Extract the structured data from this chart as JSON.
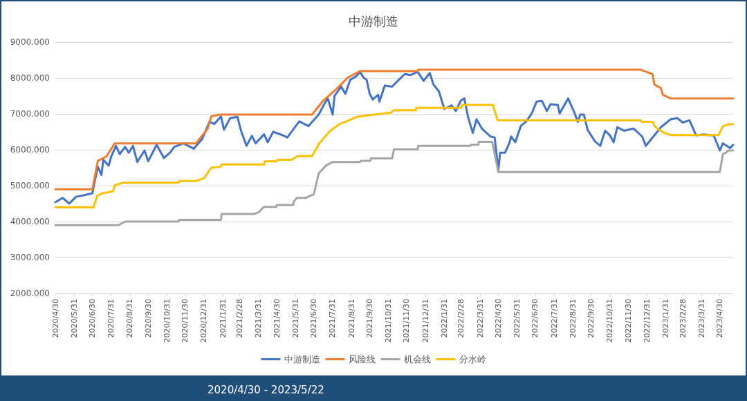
{
  "chart_data": {
    "type": "line",
    "title": "中游制造",
    "annotations": [
      "2020/4/30 - 2023/5/22"
    ],
    "xlim": [
      "2020-04-30",
      "2023-05-22"
    ],
    "xticks": [
      {
        "value": "2020-04-30",
        "label": "2020/4/30"
      },
      {
        "value": "2020-05-31",
        "label": "2020/5/31"
      },
      {
        "value": "2020-06-30",
        "label": "2020/6/30"
      },
      {
        "value": "2020-07-31",
        "label": "2020/7/31"
      },
      {
        "value": "2020-08-31",
        "label": "2020/8/31"
      },
      {
        "value": "2020-09-30",
        "label": "2020/9/30"
      },
      {
        "value": "2020-10-31",
        "label": "2020/10/31"
      },
      {
        "value": "2020-11-30",
        "label": "2020/11/30"
      },
      {
        "value": "2020-12-31",
        "label": "2020/12/31"
      },
      {
        "value": "2021-01-31",
        "label": "2021/1/31"
      },
      {
        "value": "2021-02-28",
        "label": "2021/2/28"
      },
      {
        "value": "2021-03-31",
        "label": "2021/3/31"
      },
      {
        "value": "2021-04-30",
        "label": "2021/4/30"
      },
      {
        "value": "2021-05-31",
        "label": "2021/5/31"
      },
      {
        "value": "2021-06-30",
        "label": "2021/6/30"
      },
      {
        "value": "2021-07-31",
        "label": "2021/7/31"
      },
      {
        "value": "2021-08-31",
        "label": "2021/8/31"
      },
      {
        "value": "2021-09-30",
        "label": "2021/9/30"
      },
      {
        "value": "2021-10-31",
        "label": "2021/10/31"
      },
      {
        "value": "2021-11-30",
        "label": "2021/11/30"
      },
      {
        "value": "2021-12-31",
        "label": "2021/12/31"
      },
      {
        "value": "2022-01-31",
        "label": "2022/1/31"
      },
      {
        "value": "2022-02-28",
        "label": "2022/2/28"
      },
      {
        "value": "2022-03-31",
        "label": "2022/3/31"
      },
      {
        "value": "2022-04-30",
        "label": "2022/4/30"
      },
      {
        "value": "2022-05-31",
        "label": "2022/5/31"
      },
      {
        "value": "2022-06-30",
        "label": "2022/6/30"
      },
      {
        "value": "2022-07-31",
        "label": "2022/7/31"
      },
      {
        "value": "2022-08-31",
        "label": "2022/8/31"
      },
      {
        "value": "2022-09-30",
        "label": "2022/9/30"
      },
      {
        "value": "2022-10-31",
        "label": "2022/10/31"
      },
      {
        "value": "2022-11-30",
        "label": "2022/11/30"
      },
      {
        "value": "2022-12-31",
        "label": "2022/12/31"
      },
      {
        "value": "2023-01-31",
        "label": "2023/1/31"
      },
      {
        "value": "2023-02-28",
        "label": "2023/2/28"
      },
      {
        "value": "2023-03-31",
        "label": "2023/3/31"
      },
      {
        "value": "2023-04-30",
        "label": "2023/4/30"
      }
    ],
    "ylim": [
      2000,
      9000
    ],
    "yticks": [
      {
        "value": 2000,
        "label": "2000.000"
      },
      {
        "value": 3000,
        "label": "3000.000"
      },
      {
        "value": 4000,
        "label": "4000.000"
      },
      {
        "value": 5000,
        "label": "5000.000"
      },
      {
        "value": 6000,
        "label": "6000.000"
      },
      {
        "value": 7000,
        "label": "7000.000"
      },
      {
        "value": 8000,
        "label": "8000.000"
      },
      {
        "value": 9000,
        "label": "9000.000"
      }
    ],
    "grid": "y",
    "legend": "bottom",
    "marker": "none",
    "line_style": "solid",
    "series": [
      {
        "name": "中游制造",
        "color": "#4472c4",
        "x": [
          "2020-04-30",
          "2020-05-12",
          "2020-05-23",
          "2020-06-03",
          "2020-06-18",
          "2020-06-30",
          "2020-07-09",
          "2020-07-15",
          "2020-07-18",
          "2020-07-27",
          "2020-07-31",
          "2020-08-08",
          "2020-08-14",
          "2020-08-23",
          "2020-08-29",
          "2020-09-05",
          "2020-09-12",
          "2020-09-24",
          "2020-09-30",
          "2020-10-14",
          "2020-10-26",
          "2020-11-05",
          "2020-11-12",
          "2020-11-27",
          "2020-12-14",
          "2020-12-28",
          "2021-01-09",
          "2021-01-17",
          "2021-01-28",
          "2021-02-02",
          "2021-02-12",
          "2021-02-24",
          "2021-03-02",
          "2021-03-11",
          "2021-03-20",
          "2021-03-26",
          "2021-04-09",
          "2021-04-15",
          "2021-04-24",
          "2021-05-12",
          "2021-05-17",
          "2021-06-06",
          "2021-06-21",
          "2021-07-08",
          "2021-07-17",
          "2021-07-23",
          "2021-07-31",
          "2021-08-03",
          "2021-08-14",
          "2021-08-21",
          "2021-08-29",
          "2021-09-08",
          "2021-09-14",
          "2021-09-20",
          "2021-09-25",
          "2021-09-30",
          "2021-10-05",
          "2021-10-14",
          "2021-10-16",
          "2021-10-25",
          "2021-11-06",
          "2021-11-17",
          "2021-11-27",
          "2021-12-06",
          "2021-12-18",
          "2021-12-28",
          "2022-01-07",
          "2022-01-13",
          "2022-01-22",
          "2022-01-31",
          "2022-02-12",
          "2022-02-19",
          "2022-02-27",
          "2022-03-05",
          "2022-03-11",
          "2022-03-19",
          "2022-03-25",
          "2022-04-03",
          "2022-04-17",
          "2022-04-24",
          "2022-04-30",
          "2022-05-03",
          "2022-05-11",
          "2022-05-18",
          "2022-05-21",
          "2022-05-28",
          "2022-06-06",
          "2022-06-15",
          "2022-06-24",
          "2022-07-02",
          "2022-07-11",
          "2022-07-19",
          "2022-07-25",
          "2022-08-06",
          "2022-08-09",
          "2022-08-23",
          "2022-09-02",
          "2022-09-08",
          "2022-09-12",
          "2022-09-18",
          "2022-09-24",
          "2022-10-06",
          "2022-10-15",
          "2022-10-23",
          "2022-10-31",
          "2022-11-06",
          "2022-11-12",
          "2022-11-23",
          "2022-12-09",
          "2022-12-23",
          "2022-12-29",
          "2023-01-12",
          "2023-01-23",
          "2023-02-08",
          "2023-02-19",
          "2023-02-28",
          "2023-03-11",
          "2023-03-22",
          "2023-04-03",
          "2023-04-20",
          "2023-04-30",
          "2023-05-05",
          "2023-05-17",
          "2023-05-22"
        ],
        "values": [
          4540,
          4660,
          4500,
          4690,
          4740,
          4790,
          5530,
          5300,
          5720,
          5560,
          5810,
          6110,
          5880,
          6080,
          5920,
          6110,
          5660,
          5980,
          5680,
          6140,
          5770,
          5920,
          6080,
          6180,
          6030,
          6300,
          6780,
          6720,
          6930,
          6560,
          6880,
          6920,
          6530,
          6110,
          6390,
          6180,
          6430,
          6210,
          6500,
          6390,
          6340,
          6790,
          6660,
          6980,
          7270,
          7430,
          6980,
          7500,
          7760,
          7560,
          7950,
          8050,
          8170,
          8010,
          7950,
          7560,
          7400,
          7530,
          7340,
          7790,
          7760,
          7950,
          8110,
          8080,
          8170,
          7920,
          8140,
          7820,
          7630,
          7140,
          7240,
          7080,
          7370,
          7430,
          6920,
          6470,
          6850,
          6590,
          6370,
          6340,
          5430,
          5920,
          5920,
          6180,
          6370,
          6210,
          6660,
          6790,
          7010,
          7340,
          7360,
          7080,
          7270,
          7250,
          7010,
          7430,
          7050,
          6780,
          6980,
          6980,
          6560,
          6240,
          6110,
          6530,
          6400,
          6210,
          6630,
          6530,
          6590,
          6370,
          6110,
          6400,
          6630,
          6850,
          6880,
          6760,
          6820,
          6400,
          6430,
          6400,
          5980,
          6180,
          6050,
          6140
        ]
      },
      {
        "name": "风险线",
        "color": "#ed7d31",
        "x": [
          "2020-04-30",
          "2020-06-30",
          "2020-07-09",
          "2020-07-23",
          "2020-08-06",
          "2020-12-18",
          "2021-01-06",
          "2021-01-12",
          "2021-01-26",
          "2021-06-27",
          "2021-07-15",
          "2021-08-06",
          "2021-08-25",
          "2021-09-14",
          "2021-12-18",
          "2021-12-19",
          "2022-12-21",
          "2023-01-09",
          "2023-01-12",
          "2023-01-23",
          "2023-01-26",
          "2023-02-08",
          "2023-05-22"
        ],
        "values": [
          4900,
          4900,
          5690,
          5810,
          6180,
          6180,
          6590,
          6930,
          6980,
          6980,
          7360,
          7690,
          8010,
          8190,
          8190,
          8230,
          8230,
          8110,
          7820,
          7720,
          7530,
          7430,
          7430
        ]
      },
      {
        "name": "机会线",
        "color": "#a5a5a5",
        "x": [
          "2020-04-30",
          "2020-08-12",
          "2020-08-23",
          "2020-11-19",
          "2020-11-20",
          "2021-01-28",
          "2021-01-29",
          "2021-03-24",
          "2021-03-31",
          "2021-04-09",
          "2021-04-29",
          "2021-04-30",
          "2021-05-27",
          "2021-05-28",
          "2021-06-02",
          "2021-06-17",
          "2021-06-30",
          "2021-07-08",
          "2021-07-20",
          "2021-07-31",
          "2021-09-14",
          "2021-09-15",
          "2021-10-01",
          "2021-10-02",
          "2021-11-06",
          "2021-11-09",
          "2021-12-18",
          "2021-12-19",
          "2022-03-15",
          "2022-03-16",
          "2022-03-28",
          "2022-03-29",
          "2022-04-20",
          "2022-04-30",
          "2023-04-30",
          "2023-05-05",
          "2023-05-10",
          "2023-05-14",
          "2023-05-22"
        ],
        "values": [
          3900,
          3900,
          4000,
          4000,
          4050,
          4050,
          4210,
          4210,
          4260,
          4410,
          4410,
          4460,
          4460,
          4560,
          4660,
          4660,
          4760,
          5340,
          5560,
          5660,
          5660,
          5690,
          5690,
          5760,
          5760,
          6010,
          6010,
          6110,
          6110,
          6140,
          6140,
          6220,
          6220,
          5380,
          5380,
          5880,
          5920,
          5980,
          5980
        ]
      },
      {
        "name": "分水岭",
        "color": "#ffc000",
        "x": [
          "2020-04-30",
          "2020-07-02",
          "2020-07-08",
          "2020-07-17",
          "2020-08-03",
          "2020-08-06",
          "2020-08-19",
          "2020-11-19",
          "2020-11-20",
          "2020-12-18",
          "2020-12-31",
          "2021-01-12",
          "2021-01-28",
          "2021-01-29",
          "2021-04-09",
          "2021-04-10",
          "2021-04-30",
          "2021-05-01",
          "2021-05-24",
          "2021-06-03",
          "2021-06-27",
          "2021-07-09",
          "2021-07-27",
          "2021-08-12",
          "2021-08-24",
          "2021-09-09",
          "2021-10-03",
          "2021-11-03",
          "2021-11-09",
          "2021-12-15",
          "2021-12-16",
          "2022-02-28",
          "2022-03-01",
          "2022-04-21",
          "2022-04-29",
          "2022-12-21",
          "2022-12-22",
          "2023-01-09",
          "2023-01-14",
          "2023-01-27",
          "2023-02-08",
          "2023-04-28",
          "2023-05-05",
          "2023-05-14",
          "2023-05-22"
        ],
        "values": [
          4400,
          4400,
          4720,
          4790,
          4840,
          5010,
          5080,
          5080,
          5130,
          5130,
          5210,
          5500,
          5530,
          5590,
          5590,
          5680,
          5680,
          5720,
          5720,
          5820,
          5820,
          6180,
          6530,
          6720,
          6800,
          6920,
          6970,
          7030,
          7100,
          7100,
          7170,
          7170,
          7250,
          7250,
          6820,
          6820,
          6780,
          6780,
          6630,
          6480,
          6410,
          6410,
          6650,
          6710,
          6710
        ]
      }
    ]
  }
}
